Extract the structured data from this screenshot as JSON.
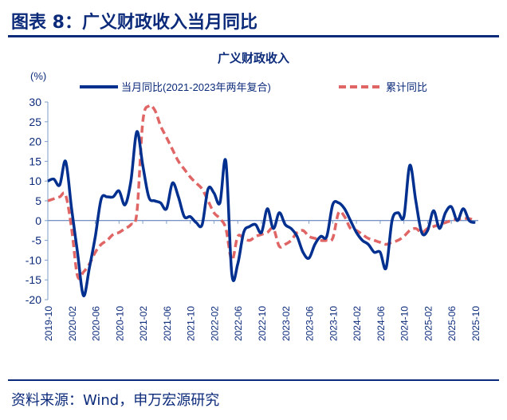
{
  "figure_title": "图表 8：广义财政收入当月同比",
  "source": "资料来源：Wind，申万宏源研究",
  "colors": {
    "navy": "#0b2a7a",
    "series_monthly": "#00308f",
    "series_cumulative": "#e06666",
    "axis": "#7f9fc7"
  },
  "chart_data": {
    "type": "line",
    "title": "广义财政收入",
    "ylabel": "(%)",
    "ylim": [
      -20,
      30
    ],
    "yticks": [
      30,
      25,
      20,
      15,
      10,
      5,
      0,
      -5,
      -10,
      -15,
      -20
    ],
    "xrange": [
      "2019-10",
      "2025-10"
    ],
    "xtick_labels": [
      "2019-10",
      "2020-02",
      "2020-06",
      "2020-10",
      "2021-02",
      "2021-06",
      "2021-10",
      "2022-02",
      "2022-06",
      "2022-10",
      "2023-02",
      "2023-06",
      "2023-10",
      "2024-02",
      "2024-06",
      "2024-10",
      "2025-02",
      "2025-06",
      "2025-10"
    ],
    "grid": false,
    "legend_placement": "top",
    "series": [
      {
        "name": "当月同比(2021-2023年两年复合)",
        "style": "solid",
        "values": [
          10,
          10.5,
          9,
          15,
          3,
          -8,
          -19,
          -12,
          -4,
          5.5,
          6,
          6,
          7.5,
          4,
          10,
          22.5,
          14,
          6,
          5,
          4.5,
          3,
          9.5,
          6,
          1,
          1,
          -0.5,
          -1,
          8,
          7,
          4.5,
          15,
          -13.5,
          -11,
          -3,
          -1.5,
          -1,
          -3,
          3,
          -2,
          2,
          -1,
          -2,
          -4,
          -8,
          -9.5,
          -6,
          -4,
          -4,
          4,
          4.5,
          3,
          0,
          -3,
          -5,
          -6,
          -8,
          -8,
          -12,
          0,
          2,
          1,
          14,
          5,
          -3,
          -2.5,
          2.5,
          -2,
          2,
          3.5,
          0,
          3,
          0,
          -0.5
        ]
      },
      {
        "name": "累计同比",
        "style": "dashed",
        "values": [
          5,
          5.5,
          6,
          6.5,
          -2,
          -14,
          -13,
          -11,
          -8,
          -6,
          -5,
          -3.5,
          -3,
          -2,
          -1,
          2,
          25,
          29,
          28,
          24,
          21,
          18,
          15,
          13,
          11,
          9.5,
          8,
          5,
          2,
          0.5,
          -2,
          -10,
          -4,
          -4.5,
          -5,
          -4,
          -3.5,
          -3,
          -2,
          -6.5,
          -6,
          -5,
          -3,
          -2.5,
          -4,
          -4.5,
          -5,
          -5,
          -4.5,
          2,
          1,
          -2,
          -2.5,
          -3.5,
          -4.5,
          -5,
          -5.5,
          -6,
          -5.5,
          -5,
          -4,
          -2.5,
          -2,
          -3,
          -2,
          -1.5,
          -1,
          -0.5,
          0,
          0.3,
          0.5,
          0.5,
          0
        ]
      }
    ]
  }
}
